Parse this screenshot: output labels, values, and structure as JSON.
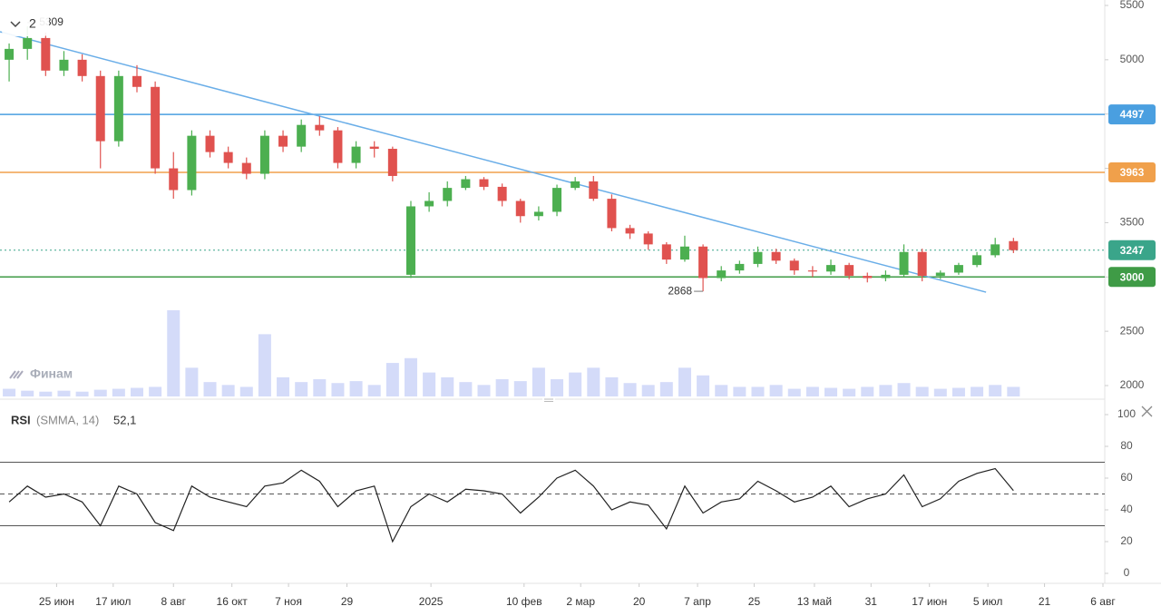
{
  "chart_data": {
    "type": "candlestick",
    "open": [
      5000,
      5100,
      5200,
      4900,
      5000,
      4850,
      4250,
      4850,
      4750,
      4000,
      3800,
      4300,
      4150,
      4050,
      3950,
      4300,
      4200,
      4400,
      4350,
      4050,
      4200,
      4180,
      3020,
      3650,
      3700,
      3820,
      3900,
      3830,
      3700,
      3560,
      3600,
      3820,
      3880,
      3720,
      3450,
      3400,
      3300,
      3160,
      3280,
      2990,
      3060,
      3120,
      3230,
      3150,
      3060,
      3050,
      3110,
      3010,
      2990,
      3020,
      3230,
      3010,
      3040,
      3110,
      3200,
      3330
    ],
    "high": [
      5150,
      5309,
      5250,
      5080,
      5050,
      4900,
      4900,
      4950,
      4800,
      4150,
      4350,
      4350,
      4200,
      4100,
      4350,
      4350,
      4450,
      4480,
      4380,
      4250,
      4250,
      4200,
      3700,
      3780,
      3880,
      3930,
      3920,
      3860,
      3720,
      3650,
      3850,
      3920,
      3930,
      3760,
      3480,
      3420,
      3320,
      3380,
      3300,
      3100,
      3150,
      3280,
      3260,
      3170,
      3100,
      3160,
      3130,
      3040,
      3060,
      3300,
      3260,
      3060,
      3130,
      3230,
      3360,
      3360
    ],
    "low": [
      4800,
      5000,
      4850,
      4850,
      4800,
      4000,
      4200,
      4700,
      3950,
      3720,
      3750,
      4100,
      4000,
      3900,
      3900,
      4150,
      4150,
      4300,
      4000,
      4000,
      4100,
      3880,
      2990,
      3600,
      3650,
      3800,
      3800,
      3650,
      3500,
      3520,
      3560,
      3800,
      3700,
      3420,
      3350,
      3250,
      3120,
      3140,
      2868,
      2960,
      3030,
      3090,
      3120,
      3020,
      3000,
      3020,
      2980,
      2950,
      2960,
      3000,
      2960,
      2980,
      3020,
      3090,
      3180,
      3220
    ],
    "close": [
      5100,
      5200,
      4900,
      5000,
      4850,
      4250,
      4850,
      4750,
      4000,
      3800,
      4300,
      4150,
      4050,
      3950,
      4300,
      4200,
      4400,
      4350,
      4050,
      4200,
      4180,
      3930,
      3650,
      3700,
      3820,
      3900,
      3830,
      3700,
      3560,
      3600,
      3820,
      3880,
      3720,
      3450,
      3400,
      3300,
      3160,
      3280,
      2990,
      3060,
      3120,
      3230,
      3150,
      3060,
      3050,
      3110,
      3010,
      2990,
      3020,
      3230,
      3010,
      3040,
      3110,
      3200,
      3300,
      3247
    ],
    "volume": [
      8,
      6,
      5,
      6,
      5,
      7,
      8,
      9,
      10,
      90,
      30,
      15,
      12,
      10,
      65,
      20,
      15,
      18,
      14,
      16,
      12,
      35,
      40,
      25,
      20,
      15,
      12,
      18,
      16,
      30,
      18,
      25,
      30,
      20,
      14,
      12,
      15,
      30,
      22,
      12,
      10,
      10,
      12,
      8,
      10,
      9,
      8,
      10,
      12,
      14,
      10,
      8,
      9,
      10,
      12,
      10
    ],
    "up_color": "#4caf50",
    "down_color": "#e0524f",
    "volume_color": "#c9d2f7",
    "xlim": [
      -0.5,
      60
    ],
    "xticks": [
      {
        "value": 2.6,
        "label": "25 июн"
      },
      {
        "value": 5.7,
        "label": "17 июл"
      },
      {
        "value": 9.0,
        "label": "8 авг"
      },
      {
        "value": 12.2,
        "label": "16 окт"
      },
      {
        "value": 15.3,
        "label": "7 ноя"
      },
      {
        "value": 18.5,
        "label": "29"
      },
      {
        "value": 23.1,
        "label": "2025"
      },
      {
        "value": 28.2,
        "label": "10 фев"
      },
      {
        "value": 31.3,
        "label": "2 мар"
      },
      {
        "value": 34.5,
        "label": "20"
      },
      {
        "value": 37.7,
        "label": "7 апр"
      },
      {
        "value": 40.8,
        "label": "25"
      },
      {
        "value": 44.1,
        "label": "13 май"
      },
      {
        "value": 47.2,
        "label": "31"
      },
      {
        "value": 50.4,
        "label": "17 июн"
      },
      {
        "value": 53.6,
        "label": "5 июл"
      },
      {
        "value": 56.7,
        "label": "21"
      },
      {
        "value": 59.9,
        "label": "6 авг"
      }
    ],
    "ylim": [
      2000,
      5500
    ],
    "yticks": [
      2000,
      2500,
      3000,
      3500,
      4000,
      4500,
      5000,
      5500
    ],
    "levels": [
      {
        "value": 4497,
        "color": "#4a9fe0"
      },
      {
        "value": 3963,
        "color": "#f0a04b"
      },
      {
        "value": 3000,
        "color": "#3f9b46"
      }
    ],
    "current_color": "#3aa58a",
    "trendline": {
      "x": [
        -0.5,
        53.5
      ],
      "y": [
        5258,
        2860
      ],
      "color": "#6aaee8"
    },
    "rsi": {
      "name": "RSI",
      "params": "(SMMA, 14)",
      "current_label": "52,1",
      "color": "#222222",
      "values": [
        45,
        55,
        48,
        50,
        45,
        30,
        55,
        50,
        32,
        27,
        55,
        48,
        45,
        42,
        55,
        57,
        65,
        58,
        42,
        52,
        55,
        20,
        42,
        50,
        45,
        53,
        52,
        50,
        38,
        48,
        60,
        65,
        55,
        40,
        45,
        43,
        28,
        55,
        38,
        45,
        47,
        58,
        52,
        45,
        48,
        55,
        42,
        47,
        50,
        62,
        42,
        47,
        58,
        63,
        66,
        52.1
      ],
      "ylim": [
        0,
        100
      ],
      "yticks": [
        0,
        20,
        40,
        60,
        80,
        100
      ],
      "levels": [
        {
          "value": 70,
          "dashed": false
        },
        {
          "value": 50,
          "dashed": true
        },
        {
          "value": 30,
          "dashed": false
        }
      ]
    }
  },
  "ui": {
    "collapse_count": "2",
    "watermark": "Финам"
  }
}
